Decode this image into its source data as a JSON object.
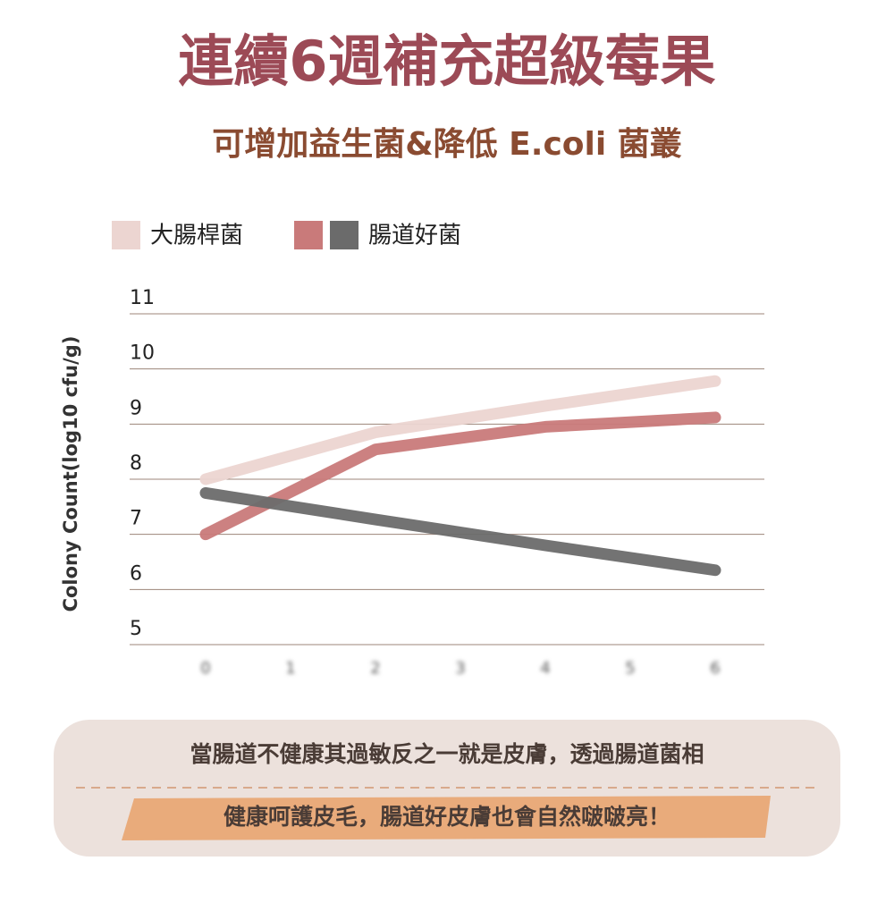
{
  "chart_data": {
    "type": "line",
    "title": "連續6週補充超級莓果",
    "subtitle": "可增加益生菌&降低 E.coli 菌叢",
    "y_label": "Colony Count(log10 cfu/g)",
    "x": [
      0,
      2,
      4,
      6
    ],
    "xlim": [
      0,
      6
    ],
    "xticks": [
      0,
      1,
      2,
      3,
      4,
      5,
      6
    ],
    "ylim": [
      5,
      11
    ],
    "yticks": [
      5,
      6,
      7,
      8,
      9,
      10,
      11
    ],
    "grid": true,
    "series": [
      {
        "name": "大腸桿菌",
        "color": "#ecd5d1",
        "values": [
          8.0,
          8.85,
          9.33,
          9.78
        ]
      },
      {
        "name": "腸道好菌",
        "color": "#c97a7a",
        "values": [
          7.0,
          8.54,
          8.95,
          9.12
        ]
      },
      {
        "name": "腸道好菌",
        "color": "#6b6b6b",
        "values": [
          7.75,
          7.27,
          6.8,
          6.35
        ]
      }
    ]
  },
  "footer": {
    "lines": [
      "當腸道不健康其過敏反之一就是皮膚，透過腸道菌相",
      "健康呵護皮毛，腸道好皮膚也會自然啵啵亮！"
    ]
  }
}
